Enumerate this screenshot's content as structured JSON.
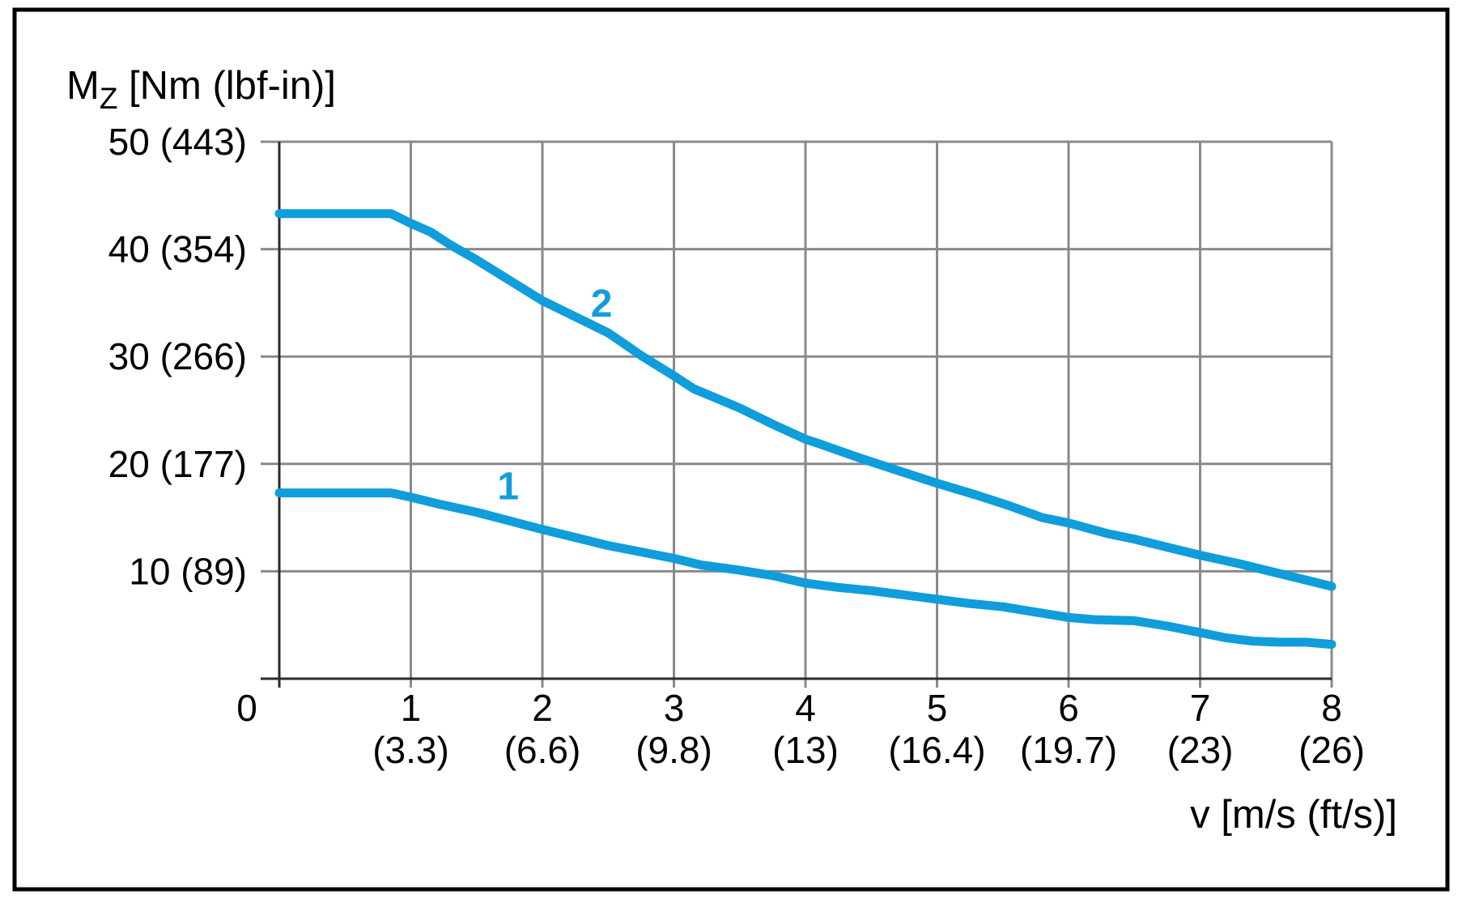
{
  "chart_data": {
    "type": "line",
    "title": "",
    "xlabel": "v [m/s (ft/s)]",
    "ylabel": "Mz [Nm (lbf-in)]",
    "ylabel_parts": {
      "main": "M",
      "sub": "Z",
      "units": " [Nm (lbf-in)]"
    },
    "x_range": [
      0,
      8
    ],
    "y_range": [
      0,
      50
    ],
    "grid": true,
    "legend_position": "inline-curve-labels",
    "x_ticks": [
      {
        "v": 0,
        "m_s": "0",
        "ft_s": ""
      },
      {
        "v": 1,
        "m_s": "1",
        "ft_s": "(3.3)"
      },
      {
        "v": 2,
        "m_s": "2",
        "ft_s": "(6.6)"
      },
      {
        "v": 3,
        "m_s": "3",
        "ft_s": "(9.8)"
      },
      {
        "v": 4,
        "m_s": "4",
        "ft_s": "(13)"
      },
      {
        "v": 5,
        "m_s": "5",
        "ft_s": "(16.4)"
      },
      {
        "v": 6,
        "m_s": "6",
        "ft_s": "(19.7)"
      },
      {
        "v": 7,
        "m_s": "7",
        "ft_s": "(23)"
      },
      {
        "v": 8,
        "m_s": "8",
        "ft_s": "(26)"
      }
    ],
    "y_ticks": [
      {
        "value": 50,
        "label": "50 (443)"
      },
      {
        "value": 40,
        "label": "40 (354)"
      },
      {
        "value": 30,
        "label": "30 (266)"
      },
      {
        "value": 20,
        "label": "20 (177)"
      },
      {
        "value": 10,
        "label": "10 (89)"
      }
    ],
    "series": [
      {
        "name": "1",
        "color": "#109DDB",
        "label_x": 1.74,
        "label_y": 18.0,
        "points": [
          [
            0,
            17.3
          ],
          [
            0.85,
            17.3
          ],
          [
            1.0,
            16.9
          ],
          [
            1.2,
            16.3
          ],
          [
            1.5,
            15.5
          ],
          [
            1.75,
            14.7
          ],
          [
            2.0,
            13.9
          ],
          [
            2.3,
            13.0
          ],
          [
            2.5,
            12.4
          ],
          [
            2.75,
            11.8
          ],
          [
            3.0,
            11.2
          ],
          [
            3.2,
            10.6
          ],
          [
            3.5,
            10.1
          ],
          [
            3.75,
            9.6
          ],
          [
            4.0,
            8.9
          ],
          [
            4.25,
            8.5
          ],
          [
            4.5,
            8.2
          ],
          [
            4.75,
            7.8
          ],
          [
            5.0,
            7.4
          ],
          [
            5.25,
            7.0
          ],
          [
            5.5,
            6.7
          ],
          [
            5.75,
            6.2
          ],
          [
            6.0,
            5.7
          ],
          [
            6.2,
            5.5
          ],
          [
            6.5,
            5.4
          ],
          [
            6.75,
            4.9
          ],
          [
            7.0,
            4.3
          ],
          [
            7.2,
            3.8
          ],
          [
            7.4,
            3.5
          ],
          [
            7.6,
            3.4
          ],
          [
            7.8,
            3.4
          ],
          [
            8.0,
            3.2
          ]
        ]
      },
      {
        "name": "2",
        "color": "#109DDB",
        "label_x": 2.45,
        "label_y": 35.0,
        "points": [
          [
            0,
            43.3
          ],
          [
            0.85,
            43.3
          ],
          [
            1.0,
            42.4
          ],
          [
            1.15,
            41.6
          ],
          [
            1.3,
            40.4
          ],
          [
            1.5,
            39.0
          ],
          [
            1.75,
            37.1
          ],
          [
            2.0,
            35.2
          ],
          [
            2.3,
            33.4
          ],
          [
            2.5,
            32.2
          ],
          [
            2.75,
            30.1
          ],
          [
            3.0,
            28.2
          ],
          [
            3.15,
            27.0
          ],
          [
            3.5,
            25.2
          ],
          [
            3.75,
            23.7
          ],
          [
            4.0,
            22.3
          ],
          [
            4.1,
            21.9
          ],
          [
            4.4,
            20.6
          ],
          [
            4.6,
            19.8
          ],
          [
            5.0,
            18.2
          ],
          [
            5.3,
            17.1
          ],
          [
            5.55,
            16.1
          ],
          [
            5.8,
            15.0
          ],
          [
            6.0,
            14.5
          ],
          [
            6.3,
            13.5
          ],
          [
            6.5,
            13.0
          ],
          [
            6.8,
            12.1
          ],
          [
            7.0,
            11.5
          ],
          [
            7.3,
            10.7
          ],
          [
            7.5,
            10.1
          ],
          [
            7.8,
            9.2
          ],
          [
            8.0,
            8.6
          ]
        ]
      }
    ]
  },
  "colors": {
    "curve": "#109DDB",
    "grid": "#8A8A8A",
    "axis": "#2B2B2B",
    "border": "#000000",
    "background": "#FFFFFF",
    "text": "#000000"
  }
}
